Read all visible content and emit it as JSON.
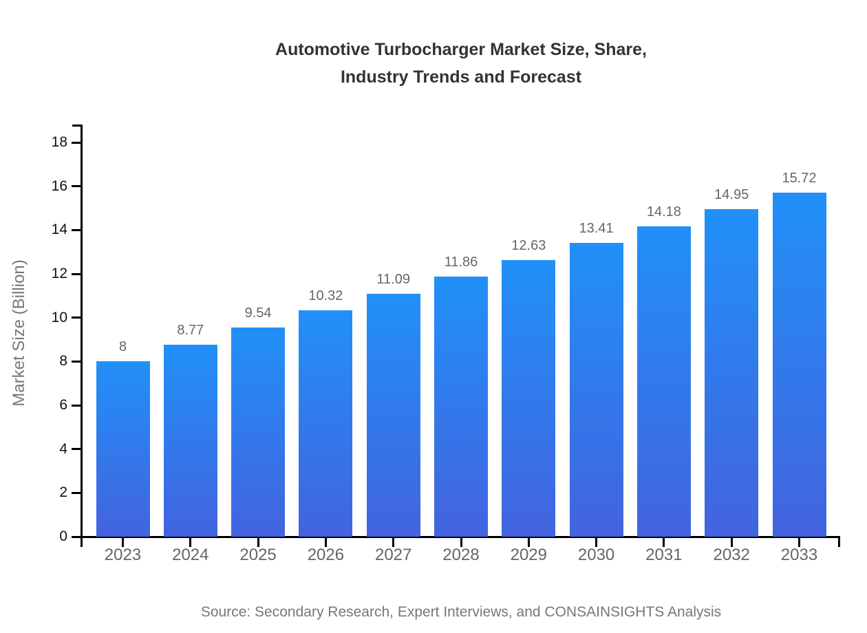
{
  "chart_data": {
    "type": "bar",
    "title_line1": "Automotive Turbocharger Market Size, Share,",
    "title_line2": "Industry Trends and Forecast",
    "ylabel": "Market Size (Billion)",
    "xlabel": "",
    "categories": [
      "2023",
      "2024",
      "2025",
      "2026",
      "2027",
      "2028",
      "2029",
      "2030",
      "2031",
      "2032",
      "2033"
    ],
    "values": [
      8,
      8.77,
      9.54,
      10.32,
      11.09,
      11.86,
      12.63,
      13.41,
      14.18,
      14.95,
      15.72
    ],
    "value_labels": [
      "8",
      "8.77",
      "9.54",
      "10.32",
      "11.09",
      "11.86",
      "12.63",
      "13.41",
      "14.18",
      "14.95",
      "15.72"
    ],
    "ylim": [
      0,
      18
    ],
    "yticks": [
      0,
      2,
      4,
      6,
      8,
      10,
      12,
      14,
      16,
      18
    ],
    "grid": false,
    "legend": "none",
    "source_note": "Source: Secondary Research, Expert Interviews, and CONSAINSIGHTS Analysis",
    "colors": {
      "bar_gradient_top": "#2190F8",
      "bar_gradient_bottom": "#4363DF",
      "axis": "#000000",
      "title_text": "#333333",
      "y_tick_label": "#111111",
      "x_tick_label": "#666666",
      "value_label": "#666666",
      "axis_label": "#777777",
      "source_text": "#777777"
    }
  }
}
